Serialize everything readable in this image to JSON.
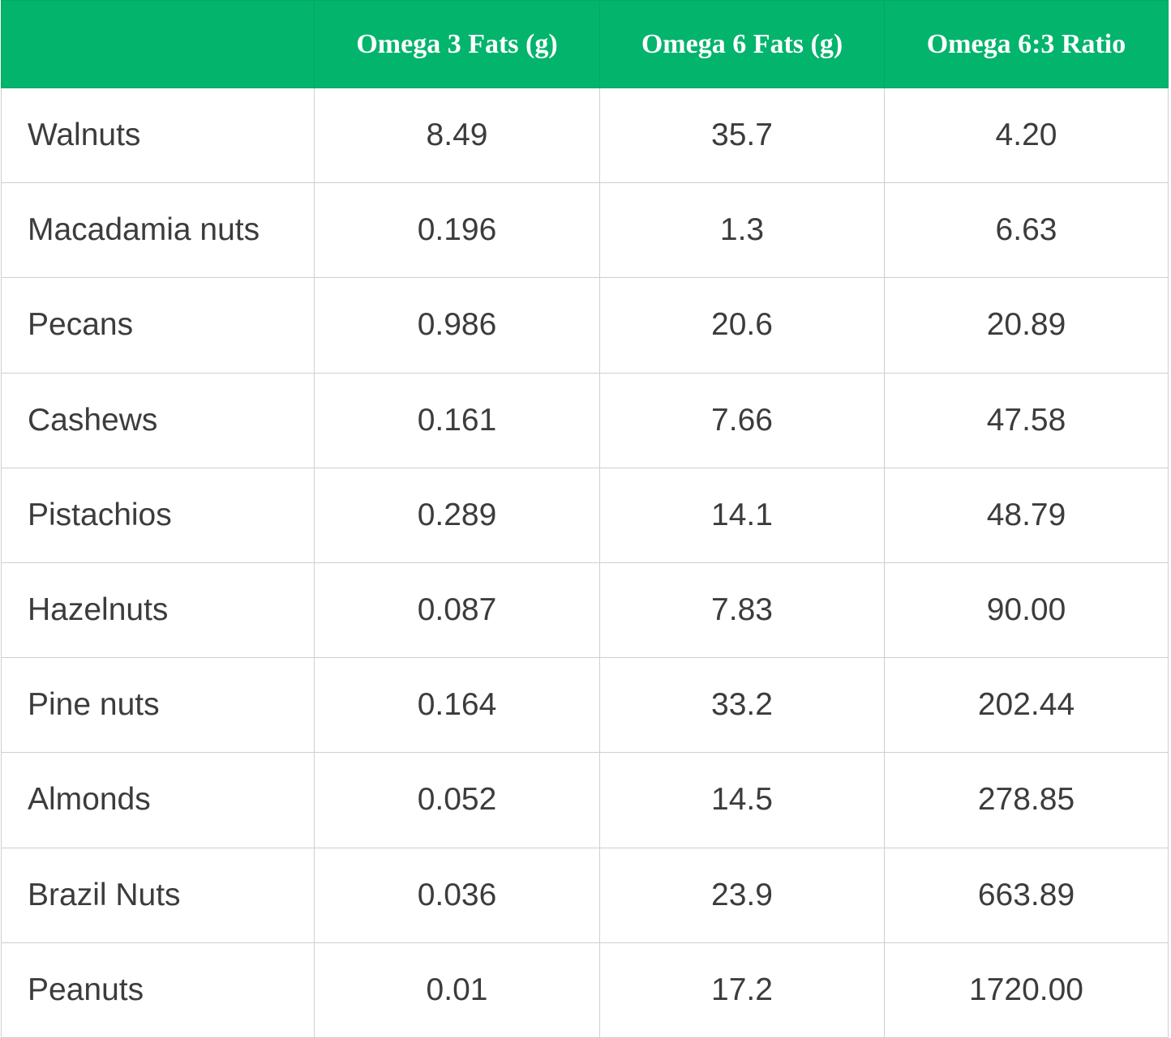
{
  "table": {
    "header_color": "#03b46c",
    "columns": [
      "",
      "Omega 3 Fats (g)",
      "Omega 6 Fats (g)",
      "Omega 6:3 Ratio"
    ],
    "rows": [
      {
        "name": "Walnuts",
        "omega3": "8.49",
        "omega6": "35.7",
        "ratio": "4.20"
      },
      {
        "name": "Macadamia nuts",
        "omega3": "0.196",
        "omega6": "1.3",
        "ratio": "6.63"
      },
      {
        "name": "Pecans",
        "omega3": "0.986",
        "omega6": "20.6",
        "ratio": "20.89"
      },
      {
        "name": "Cashews",
        "omega3": "0.161",
        "omega6": "7.66",
        "ratio": "47.58"
      },
      {
        "name": "Pistachios",
        "omega3": "0.289",
        "omega6": "14.1",
        "ratio": "48.79"
      },
      {
        "name": "Hazelnuts",
        "omega3": "0.087",
        "omega6": "7.83",
        "ratio": "90.00"
      },
      {
        "name": "Pine nuts",
        "omega3": "0.164",
        "omega6": "33.2",
        "ratio": "202.44"
      },
      {
        "name": "Almonds",
        "omega3": "0.052",
        "omega6": "14.5",
        "ratio": "278.85"
      },
      {
        "name": "Brazil Nuts",
        "omega3": "0.036",
        "omega6": "23.9",
        "ratio": "663.89"
      },
      {
        "name": "Peanuts",
        "omega3": "0.01",
        "omega6": "17.2",
        "ratio": "1720.00"
      }
    ]
  }
}
